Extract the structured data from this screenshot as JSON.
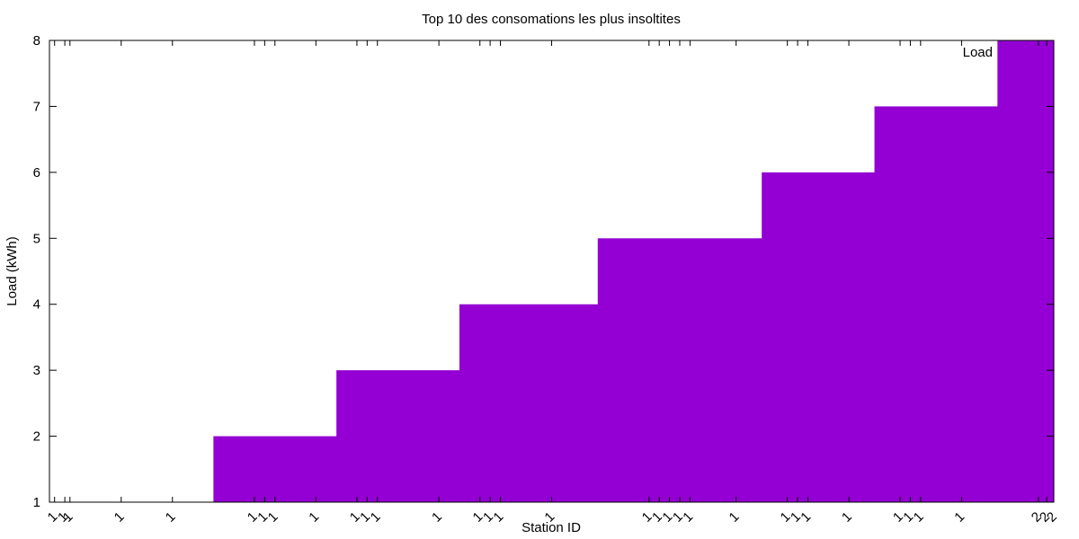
{
  "chart_data": {
    "type": "area",
    "title": "Top 10 des consomations les plus insoltites",
    "xlabel": "Station ID",
    "ylabel": "Load (kWh)",
    "ylim": [
      1,
      8
    ],
    "y_ticks": [
      "1",
      "2",
      "3",
      "4",
      "5",
      "6",
      "7",
      "8"
    ],
    "legend": {
      "position": "top-right",
      "entries": [
        "Load"
      ]
    },
    "grid": false,
    "series": [
      {
        "name": "Load",
        "color": "#9400d3",
        "steps": [
          {
            "from_bar": 0,
            "to_bar": 16,
            "value": 1
          },
          {
            "from_bar": 16,
            "to_bar": 28,
            "value": 2
          },
          {
            "from_bar": 28,
            "to_bar": 40,
            "value": 3
          },
          {
            "from_bar": 40,
            "to_bar": 53.5,
            "value": 4
          },
          {
            "from_bar": 53.5,
            "to_bar": 69.5,
            "value": 5
          },
          {
            "from_bar": 69.5,
            "to_bar": 80.5,
            "value": 6
          },
          {
            "from_bar": 80.5,
            "to_bar": 92.5,
            "value": 7
          },
          {
            "from_bar": 92.5,
            "to_bar": 98,
            "value": 8
          }
        ]
      }
    ],
    "x_range": [
      0,
      98
    ],
    "x_ticks": [
      {
        "at": 0.5,
        "label": "1"
      },
      {
        "at": 1.5,
        "label": "1"
      },
      {
        "at": 2.0,
        "label": "1"
      },
      {
        "at": 7.0,
        "label": "1"
      },
      {
        "at": 12.0,
        "label": "1"
      },
      {
        "at": 20.0,
        "label": "1"
      },
      {
        "at": 21.0,
        "label": "1"
      },
      {
        "at": 22.0,
        "label": "1"
      },
      {
        "at": 26.0,
        "label": "1"
      },
      {
        "at": 30.0,
        "label": "1"
      },
      {
        "at": 31.0,
        "label": "1"
      },
      {
        "at": 32.0,
        "label": "1"
      },
      {
        "at": 38.0,
        "label": "1"
      },
      {
        "at": 42.0,
        "label": "1"
      },
      {
        "at": 43.0,
        "label": "1"
      },
      {
        "at": 44.0,
        "label": "1"
      },
      {
        "at": 49.0,
        "label": "1"
      },
      {
        "at": 58.5,
        "label": "1"
      },
      {
        "at": 59.5,
        "label": "1"
      },
      {
        "at": 60.5,
        "label": "1"
      },
      {
        "at": 61.5,
        "label": "1"
      },
      {
        "at": 62.5,
        "label": "1"
      },
      {
        "at": 67.0,
        "label": "1"
      },
      {
        "at": 72.0,
        "label": "1"
      },
      {
        "at": 73.0,
        "label": "1"
      },
      {
        "at": 74.0,
        "label": "1"
      },
      {
        "at": 78.0,
        "label": "1"
      },
      {
        "at": 83.0,
        "label": "1"
      },
      {
        "at": 84.0,
        "label": "1"
      },
      {
        "at": 85.0,
        "label": "1"
      },
      {
        "at": 89.0,
        "label": "1"
      },
      {
        "at": 96.5,
        "label": "2"
      },
      {
        "at": 97.3,
        "label": "2"
      },
      {
        "at": 98.0,
        "label": "2"
      }
    ]
  }
}
